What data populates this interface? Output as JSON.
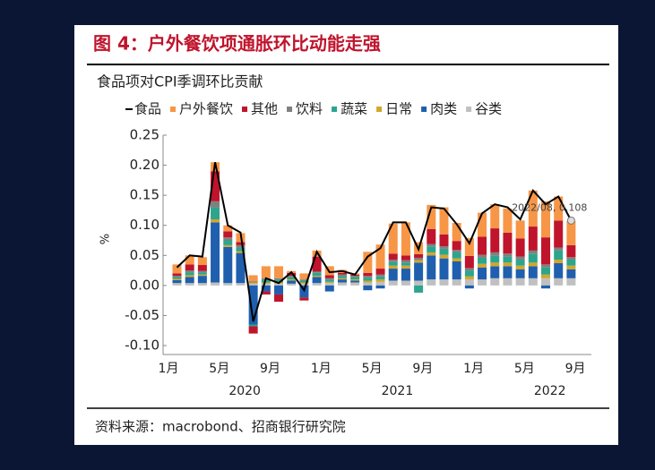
{
  "header": {
    "title": "图 4：户外餐饮项通胀环比动能走强"
  },
  "chart_data": {
    "type": "bar",
    "title": "食品项对CPI季调环比贡献",
    "y_label": "%",
    "categories": [
      "1月",
      null,
      null,
      null,
      "5月",
      null,
      null,
      null,
      "9月",
      null,
      null,
      null,
      "1月",
      null,
      null,
      null,
      "5月",
      null,
      null,
      null,
      "9月",
      null,
      null,
      null,
      "1月",
      null,
      null,
      null,
      "5月",
      null,
      null,
      null,
      "9月"
    ],
    "years": [
      "2020",
      "2021",
      "2022"
    ],
    "ylim": [
      -0.1,
      0.25
    ],
    "yticks": [
      {
        "value": 0.25,
        "label": "0.25"
      },
      {
        "value": 0.2,
        "label": "0.20"
      },
      {
        "value": 0.15,
        "label": "0.15"
      },
      {
        "value": 0.1,
        "label": "0.10"
      },
      {
        "value": 0.05,
        "label": "0.05"
      },
      {
        "value": 0,
        "label": "0.00"
      },
      {
        "value": -0.05,
        "label": "-0.05"
      },
      {
        "value": -0.1,
        "label": "-0.10"
      }
    ],
    "line": {
      "name": "食品",
      "color": "#000000",
      "values": [
        0.03,
        0.05,
        0.048,
        0.205,
        0.1,
        0.088,
        -0.06,
        0.012,
        0.004,
        0.022,
        -0.008,
        0.056,
        0.022,
        0.024,
        0.018,
        0.048,
        0.062,
        0.105,
        0.105,
        0.06,
        0.13,
        0.128,
        0.102,
        0.07,
        0.12,
        0.135,
        0.13,
        0.11,
        0.158,
        0.135,
        0.148,
        0.108,
        null
      ]
    },
    "series": [
      {
        "name": "谷类",
        "color": "#c0c0c0",
        "values": [
          0.004,
          0.004,
          0.004,
          0.005,
          0.004,
          0.004,
          0.003,
          0.003,
          0.003,
          0.003,
          0.003,
          0.004,
          0.004,
          0.005,
          0.005,
          0.005,
          0.006,
          0.008,
          0.008,
          0.008,
          0.01,
          0.01,
          0.01,
          0.01,
          0.01,
          0.012,
          0.012,
          0.012,
          0.012,
          0.012,
          0.012,
          0.012,
          null
        ]
      },
      {
        "name": "肉类",
        "color": "#1f5fae",
        "values": [
          0.005,
          0.01,
          0.012,
          0.1,
          0.06,
          0.05,
          -0.065,
          -0.01,
          -0.015,
          0.005,
          -0.02,
          0.01,
          -0.01,
          0.005,
          0.003,
          -0.008,
          -0.005,
          0.02,
          0.02,
          0.03,
          0.04,
          0.035,
          0.03,
          -0.005,
          0.02,
          0.02,
          0.02,
          0.015,
          0.02,
          -0.005,
          0.025,
          0.015,
          null
        ]
      },
      {
        "name": "日常",
        "color": "#d4a62a",
        "values": [
          0.002,
          0.003,
          0.002,
          0.005,
          0.003,
          0.003,
          0.002,
          0.002,
          0.002,
          0.002,
          0.002,
          0.002,
          0.002,
          0.002,
          0.002,
          0.003,
          0.004,
          0.005,
          0.005,
          0.004,
          0.005,
          0.006,
          0.005,
          0.005,
          0.006,
          0.006,
          0.006,
          0.006,
          0.006,
          0.006,
          0.006,
          0.006,
          null
        ]
      },
      {
        "name": "蔬菜",
        "color": "#2ca58d",
        "values": [
          0.003,
          0.005,
          0.004,
          0.02,
          0.008,
          0.006,
          -0.003,
          0.005,
          0.005,
          0.004,
          0.003,
          0.005,
          0.004,
          0.004,
          0.004,
          0.005,
          0.005,
          0.006,
          0.005,
          -0.012,
          0.01,
          0.01,
          0.01,
          0.01,
          0.01,
          0.012,
          0.01,
          0.01,
          0.015,
          0.012,
          0.015,
          0.01,
          null
        ]
      },
      {
        "name": "饮料",
        "color": "#808080",
        "values": [
          0.002,
          0.003,
          0.002,
          0.01,
          0.005,
          0.004,
          0.002,
          0.002,
          0.002,
          0.002,
          0.002,
          0.002,
          0.002,
          0.002,
          0.002,
          0.003,
          0.003,
          0.004,
          0.004,
          0.004,
          0.004,
          0.004,
          0.004,
          0.004,
          0.005,
          0.005,
          0.005,
          0.005,
          0.005,
          0.005,
          0.005,
          0.004,
          null
        ]
      },
      {
        "name": "其他",
        "color": "#c0142c",
        "values": [
          0.004,
          0.01,
          0.01,
          0.05,
          0.01,
          0.005,
          -0.012,
          -0.005,
          -0.012,
          0.005,
          -0.005,
          0.025,
          0.005,
          0.003,
          0.002,
          0.005,
          0.01,
          0.01,
          0.008,
          0.006,
          0.025,
          0.02,
          0.015,
          0.02,
          0.03,
          0.04,
          0.035,
          0.03,
          0.04,
          0.045,
          0.045,
          0.02,
          null
        ]
      },
      {
        "name": "户外餐饮",
        "color": "#f79646",
        "values": [
          0.015,
          0.015,
          0.013,
          0.015,
          0.01,
          0.015,
          0.01,
          0.02,
          0.02,
          0.003,
          0.01,
          0.01,
          0.015,
          0.005,
          0.002,
          0.035,
          0.04,
          0.05,
          0.055,
          0.02,
          0.04,
          0.045,
          0.03,
          0.03,
          0.04,
          0.04,
          0.04,
          0.03,
          0.06,
          0.06,
          0.04,
          0.04,
          null
        ]
      }
    ],
    "annotation": "2022/08, 0.108"
  },
  "source": "资料来源：macrobond、招商银行研究院"
}
